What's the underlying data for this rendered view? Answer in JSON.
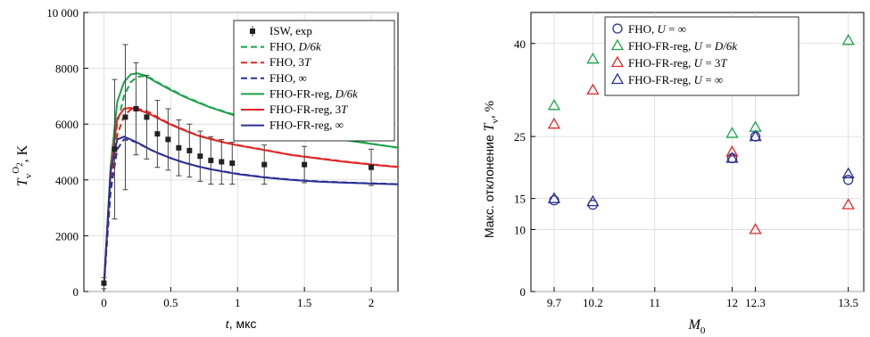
{
  "chart_data": [
    {
      "type": "line",
      "xlabel": "t, мкс",
      "ylabel": "T_v^O2, K",
      "xlim": [
        -0.15,
        2.2
      ],
      "ylim": [
        0,
        10000
      ],
      "xticks": [
        0,
        0.5,
        1,
        1.5,
        2
      ],
      "xtick_labels": [
        "0",
        "0.5",
        "1",
        "1.5",
        "2"
      ],
      "yticks": [
        0,
        2000,
        4000,
        6000,
        8000,
        10000
      ],
      "ytick_labels": [
        "0",
        "2000",
        "4000",
        "6000",
        "8000",
        "10 000"
      ],
      "grid": true,
      "legend_position": "top-right",
      "series": [
        {
          "name": "ISW, exp",
          "kind": "errorbar",
          "color": "#000000",
          "x": [
            0,
            0.08,
            0.16,
            0.24,
            0.32,
            0.4,
            0.48,
            0.56,
            0.64,
            0.72,
            0.8,
            0.88,
            0.96,
            1.2,
            1.5,
            2.0
          ],
          "y": [
            300,
            5100,
            6250,
            6550,
            6250,
            5650,
            5450,
            5150,
            5050,
            4850,
            4700,
            4650,
            4600,
            4550,
            4550,
            4450
          ],
          "err": [
            200,
            2500,
            2600,
            1650,
            1500,
            1200,
            1100,
            1000,
            950,
            900,
            850,
            800,
            750,
            700,
            650,
            650
          ]
        },
        {
          "name": "FHO, D/6k",
          "dash": true,
          "color": "#1aa44a",
          "x": [
            0,
            0.05,
            0.1,
            0.15,
            0.2,
            0.25,
            0.3,
            0.35,
            0.4,
            0.5,
            0.6,
            0.7,
            0.8,
            0.9,
            1.0,
            1.2,
            1.4,
            1.6,
            1.8,
            2.0,
            2.2
          ],
          "y": [
            200,
            4000,
            6000,
            7000,
            7500,
            7700,
            7720,
            7650,
            7500,
            7250,
            7000,
            6800,
            6600,
            6450,
            6300,
            6050,
            5800,
            5600,
            5450,
            5300,
            5150
          ]
        },
        {
          "name": "FHO, 3T",
          "dash": true,
          "color": "#e32626",
          "x": [
            0,
            0.05,
            0.1,
            0.15,
            0.2,
            0.25,
            0.3,
            0.35,
            0.4,
            0.5,
            0.6,
            0.7,
            0.8,
            0.9,
            1.0,
            1.2,
            1.4,
            1.6,
            1.8,
            2.0,
            2.2
          ],
          "y": [
            200,
            3800,
            5600,
            6300,
            6520,
            6550,
            6500,
            6400,
            6250,
            6000,
            5800,
            5600,
            5480,
            5350,
            5250,
            5080,
            4900,
            4780,
            4660,
            4560,
            4470
          ]
        },
        {
          "name": "FHO, ∞",
          "dash": true,
          "color": "#2b2f94",
          "x": [
            0,
            0.05,
            0.1,
            0.15,
            0.2,
            0.25,
            0.3,
            0.35,
            0.4,
            0.5,
            0.6,
            0.7,
            0.8,
            0.9,
            1.0,
            1.2,
            1.4,
            1.6,
            1.8,
            2.0,
            2.2
          ],
          "y": [
            200,
            3600,
            5100,
            5450,
            5420,
            5330,
            5200,
            5080,
            4970,
            4780,
            4620,
            4490,
            4380,
            4300,
            4220,
            4100,
            4010,
            3950,
            3910,
            3880,
            3850
          ]
        },
        {
          "name": "FHO-FR-reg, D/6k",
          "dash": false,
          "color": "#1aa44a",
          "x": [
            0,
            0.05,
            0.1,
            0.15,
            0.2,
            0.25,
            0.3,
            0.35,
            0.4,
            0.5,
            0.6,
            0.7,
            0.8,
            0.9,
            1.0,
            1.2,
            1.4,
            1.6,
            1.8,
            2.0,
            2.2
          ],
          "y": [
            200,
            4500,
            6800,
            7500,
            7780,
            7820,
            7750,
            7620,
            7480,
            7220,
            6980,
            6780,
            6590,
            6430,
            6280,
            6030,
            5790,
            5590,
            5430,
            5290,
            5160
          ]
        },
        {
          "name": "FHO-FR-reg, 3T",
          "dash": false,
          "color": "#e32626",
          "x": [
            0,
            0.05,
            0.1,
            0.15,
            0.2,
            0.25,
            0.3,
            0.35,
            0.4,
            0.5,
            0.6,
            0.7,
            0.8,
            0.9,
            1.0,
            1.2,
            1.4,
            1.6,
            1.8,
            2.0,
            2.2
          ],
          "y": [
            200,
            4300,
            6200,
            6550,
            6580,
            6520,
            6440,
            6340,
            6220,
            5980,
            5780,
            5590,
            5460,
            5340,
            5240,
            5070,
            4890,
            4770,
            4650,
            4550,
            4460
          ]
        },
        {
          "name": "FHO-FR-reg, ∞",
          "dash": false,
          "color": "#2b2f94",
          "x": [
            0,
            0.05,
            0.1,
            0.15,
            0.2,
            0.25,
            0.3,
            0.35,
            0.4,
            0.5,
            0.6,
            0.7,
            0.8,
            0.9,
            1.0,
            1.2,
            1.4,
            1.6,
            1.8,
            2.0,
            2.2
          ],
          "y": [
            200,
            4300,
            5450,
            5550,
            5450,
            5340,
            5210,
            5080,
            4970,
            4780,
            4620,
            4490,
            4380,
            4290,
            4210,
            4090,
            4000,
            3940,
            3900,
            3870,
            3840
          ]
        }
      ]
    },
    {
      "type": "scatter",
      "xlabel": "M_0",
      "ylabel": "Макс. отклонение T_v, %",
      "xlim": [
        9.4,
        13.7
      ],
      "ylim": [
        0,
        45
      ],
      "xticks": [
        9.7,
        10.2,
        11,
        12,
        12.3,
        13.5
      ],
      "xtick_labels": [
        "9.7",
        "10.2",
        "11",
        "12",
        "12.3",
        "13.5"
      ],
      "yticks": [
        0,
        10,
        15,
        25,
        40
      ],
      "ytick_labels": [
        "0",
        "10",
        "15",
        "25",
        "40"
      ],
      "grid": true,
      "legend_position": "top-left",
      "series": [
        {
          "name": "FHO, U = ∞",
          "marker": "circle",
          "color": "#2b2f94",
          "x": [
            9.7,
            10.2,
            12,
            12.3,
            13.5
          ],
          "y": [
            14.7,
            14.0,
            21.5,
            25.0,
            18.0
          ]
        },
        {
          "name": "FHO-FR-reg, U = D/6k",
          "marker": "triangle",
          "color": "#1aa44a",
          "x": [
            9.7,
            10.2,
            12,
            12.3,
            13.5
          ],
          "y": [
            30.0,
            37.5,
            25.5,
            26.5,
            40.5
          ]
        },
        {
          "name": "FHO-FR-reg, U = 3T",
          "marker": "triangle",
          "color": "#e32626",
          "x": [
            9.7,
            10.2,
            12,
            12.3,
            13.5
          ],
          "y": [
            27.0,
            32.5,
            22.5,
            10.0,
            14.0
          ]
        },
        {
          "name": "FHO-FR-reg, U = ∞",
          "marker": "triangle",
          "color": "#2b2f94",
          "x": [
            9.7,
            10.2,
            12,
            12.3,
            13.5
          ],
          "y": [
            15.0,
            14.5,
            21.5,
            25.0,
            19.0
          ]
        }
      ]
    }
  ]
}
